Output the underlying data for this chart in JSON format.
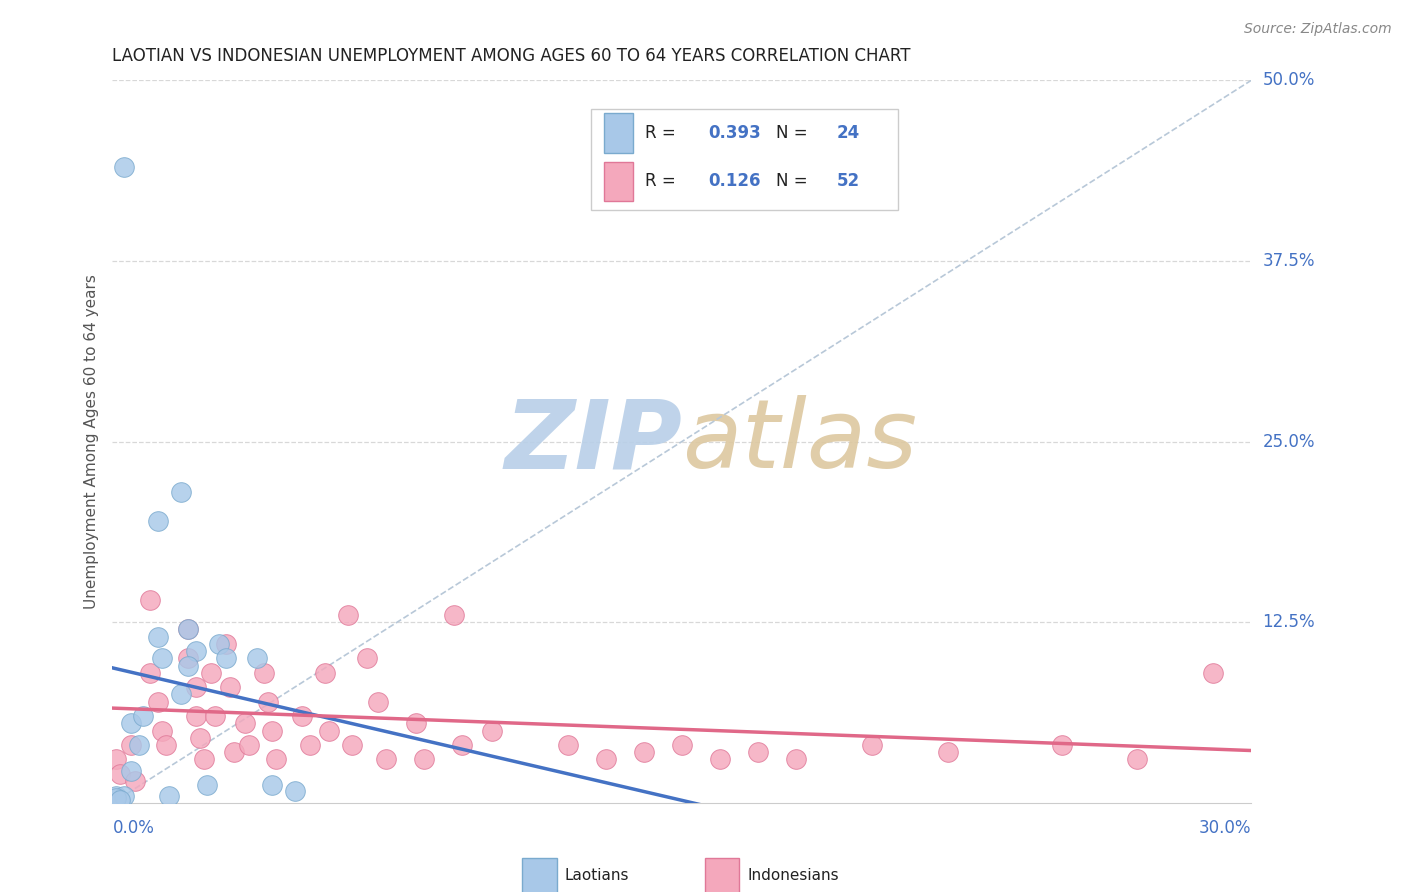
{
  "title": "LAOTIAN VS INDONESIAN UNEMPLOYMENT AMONG AGES 60 TO 64 YEARS CORRELATION CHART",
  "source": "Source: ZipAtlas.com",
  "ylabel": "Unemployment Among Ages 60 to 64 years",
  "ytick_labels": [
    "12.5%",
    "25.0%",
    "37.5%",
    "50.0%"
  ],
  "ytick_vals": [
    0.125,
    0.25,
    0.375,
    0.5
  ],
  "xlim": [
    0.0,
    0.3
  ],
  "ylim": [
    0.0,
    0.5
  ],
  "legend_laotian_r": "0.393",
  "legend_laotian_n": "24",
  "legend_indonesian_r": "0.126",
  "legend_indonesian_n": "52",
  "laotian_color": "#a8c8e8",
  "laotian_edge_color": "#7aaace",
  "laotian_line_color": "#4472c4",
  "indonesian_color": "#f4a8bc",
  "indonesian_edge_color": "#e07898",
  "indonesian_line_color": "#e06888",
  "ref_line_color": "#b8c8d8",
  "grid_color": "#d8d8d8",
  "blue_text": "#4472c4",
  "black_text": "#222222",
  "source_text": "#888888",
  "background": "#ffffff",
  "laotian_x": [
    0.003,
    0.012,
    0.012,
    0.013,
    0.018,
    0.02,
    0.022,
    0.02,
    0.018,
    0.028,
    0.03,
    0.038,
    0.042,
    0.048,
    0.005,
    0.008,
    0.001,
    0.015,
    0.025,
    0.005,
    0.007,
    0.003,
    0.001,
    0.002
  ],
  "laotian_y": [
    0.44,
    0.195,
    0.115,
    0.1,
    0.215,
    0.12,
    0.105,
    0.095,
    0.075,
    0.11,
    0.1,
    0.1,
    0.012,
    0.008,
    0.055,
    0.06,
    0.005,
    0.005,
    0.012,
    0.022,
    0.04,
    0.005,
    0.003,
    0.002
  ],
  "indonesian_x": [
    0.001,
    0.002,
    0.005,
    0.006,
    0.01,
    0.01,
    0.012,
    0.013,
    0.014,
    0.02,
    0.02,
    0.022,
    0.022,
    0.023,
    0.024,
    0.026,
    0.027,
    0.03,
    0.031,
    0.032,
    0.035,
    0.036,
    0.04,
    0.041,
    0.042,
    0.043,
    0.05,
    0.052,
    0.056,
    0.057,
    0.062,
    0.063,
    0.067,
    0.07,
    0.072,
    0.08,
    0.082,
    0.09,
    0.092,
    0.1,
    0.12,
    0.13,
    0.14,
    0.15,
    0.16,
    0.17,
    0.18,
    0.2,
    0.22,
    0.25,
    0.27,
    0.29
  ],
  "indonesian_y": [
    0.03,
    0.02,
    0.04,
    0.015,
    0.14,
    0.09,
    0.07,
    0.05,
    0.04,
    0.12,
    0.1,
    0.08,
    0.06,
    0.045,
    0.03,
    0.09,
    0.06,
    0.11,
    0.08,
    0.035,
    0.055,
    0.04,
    0.09,
    0.07,
    0.05,
    0.03,
    0.06,
    0.04,
    0.09,
    0.05,
    0.13,
    0.04,
    0.1,
    0.07,
    0.03,
    0.055,
    0.03,
    0.13,
    0.04,
    0.05,
    0.04,
    0.03,
    0.035,
    0.04,
    0.03,
    0.035,
    0.03,
    0.04,
    0.035,
    0.04,
    0.03,
    0.09
  ]
}
